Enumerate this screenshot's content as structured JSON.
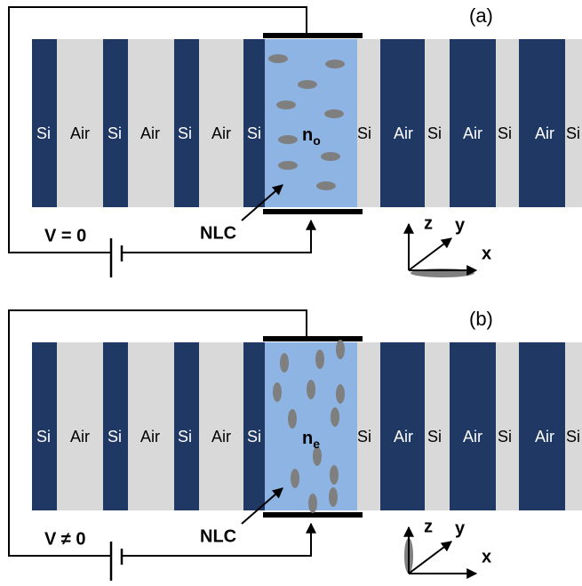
{
  "panels": [
    {
      "label": "(a)",
      "voltage": "V = 0",
      "nlc": "NLC",
      "index": {
        "base": "n",
        "sub": "o"
      },
      "layers": [
        "Si",
        "Air",
        "Si",
        "Air",
        "Si",
        "Air",
        "Si",
        "Si",
        "Air",
        "Si",
        "Air",
        "Si",
        "Air",
        "Si"
      ],
      "axes": {
        "z": "z",
        "y": "y",
        "x": "x"
      }
    },
    {
      "label": "(b)",
      "voltage": "V ≠ 0",
      "nlc": "NLC",
      "index": {
        "base": "n",
        "sub": "e"
      },
      "layers": [
        "Si",
        "Air",
        "Si",
        "Air",
        "Si",
        "Air",
        "Si",
        "Si",
        "Air",
        "Si",
        "Air",
        "Si",
        "Air",
        "Si"
      ],
      "axes": {
        "z": "z",
        "y": "y",
        "x": "x"
      }
    }
  ]
}
